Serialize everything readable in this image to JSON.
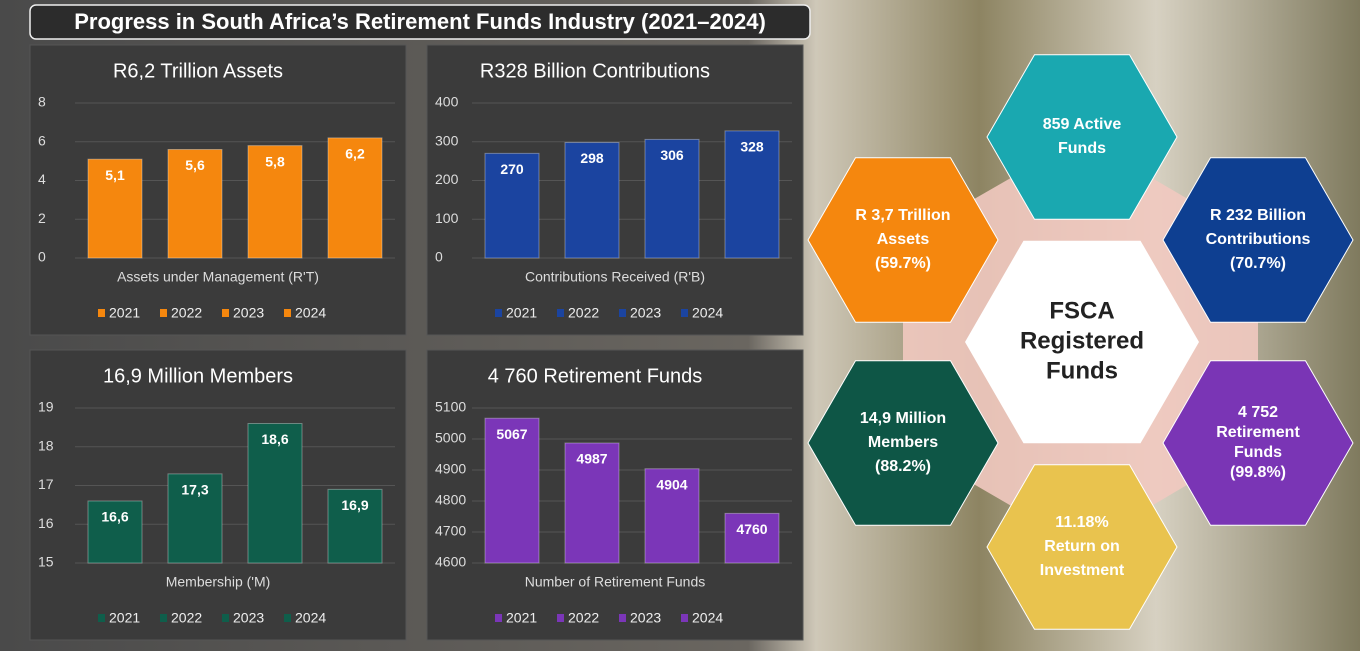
{
  "title": "Progress in South Africa’s Retirement Funds Industry (2021–2024)",
  "chart_data": [
    {
      "type": "bar",
      "title": "R6,2 Trillion Assets",
      "x_label": "Assets under Management (R'T)",
      "ylim": [
        0,
        8
      ],
      "yticks": [
        0,
        2,
        4,
        6,
        8
      ],
      "grid": true,
      "series": [
        {
          "name": "2021",
          "color": "#f5870e",
          "values": [
            5.1
          ],
          "value_labels": [
            "5,1"
          ]
        },
        {
          "name": "2022",
          "color": "#f5870e",
          "values": [
            5.6
          ],
          "value_labels": [
            "5,6"
          ]
        },
        {
          "name": "2023",
          "color": "#f5870e",
          "values": [
            5.8
          ],
          "value_labels": [
            "5,8"
          ]
        },
        {
          "name": "2024",
          "color": "#f5870e",
          "values": [
            6.2
          ],
          "value_labels": [
            "6,2"
          ]
        }
      ]
    },
    {
      "type": "bar",
      "title": "R328 Billion Contributions",
      "x_label": "Contributions Received (R'B)",
      "ylim": [
        0,
        400
      ],
      "yticks": [
        0,
        100,
        200,
        300,
        400
      ],
      "grid": true,
      "series": [
        {
          "name": "2021",
          "color": "#1b44a0",
          "values": [
            270
          ]
        },
        {
          "name": "2022",
          "color": "#1b44a0",
          "values": [
            298
          ]
        },
        {
          "name": "2023",
          "color": "#1b44a0",
          "values": [
            306
          ]
        },
        {
          "name": "2024",
          "color": "#1b44a0",
          "values": [
            328
          ]
        }
      ]
    },
    {
      "type": "bar",
      "title": "16,9 Million Members",
      "x_label": "Membership ('M)",
      "ylim": [
        15,
        19
      ],
      "yticks": [
        15,
        16,
        17,
        18,
        19
      ],
      "grid": true,
      "series": [
        {
          "name": "2021",
          "color": "#0f5e4b",
          "values": [
            16.6
          ],
          "value_labels": [
            "16,6"
          ]
        },
        {
          "name": "2022",
          "color": "#0f5e4b",
          "values": [
            17.3
          ],
          "value_labels": [
            "17,3"
          ]
        },
        {
          "name": "2023",
          "color": "#0f5e4b",
          "values": [
            18.6
          ],
          "value_labels": [
            "18,6"
          ]
        },
        {
          "name": "2024",
          "color": "#0f5e4b",
          "values": [
            16.9
          ],
          "value_labels": [
            "16,9"
          ]
        }
      ]
    },
    {
      "type": "bar",
      "title": "4 760 Retirement Funds",
      "x_label": "Number of Retirement Funds",
      "ylim": [
        4600,
        5100
      ],
      "yticks": [
        4600,
        4700,
        4800,
        4900,
        5000,
        5100
      ],
      "grid": true,
      "series": [
        {
          "name": "2021",
          "color": "#7b36b8",
          "values": [
            5067
          ]
        },
        {
          "name": "2022",
          "color": "#7b36b8",
          "values": [
            4987
          ]
        },
        {
          "name": "2023",
          "color": "#7b36b8",
          "values": [
            4904
          ]
        },
        {
          "name": "2024",
          "color": "#7b36b8",
          "values": [
            4760
          ]
        }
      ]
    }
  ],
  "diagram": {
    "center": [
      "FSCA",
      "Registered",
      "Funds"
    ],
    "hexagons": [
      {
        "lines": [
          "859 Active",
          "Funds"
        ]
      },
      {
        "lines": [
          "R 232 Billion",
          "Contributions",
          "(70.7%)"
        ]
      },
      {
        "lines": [
          "4 752",
          "Retirement",
          "Funds",
          "(99.8%)"
        ]
      },
      {
        "lines": [
          "11.18%",
          "Return on",
          "Investment"
        ]
      },
      {
        "lines": [
          "14,9 Million",
          "Members",
          "(88.2%)"
        ]
      },
      {
        "lines": [
          "R 3,7 Trillion",
          "Assets",
          "(59.7%)"
        ]
      }
    ]
  }
}
